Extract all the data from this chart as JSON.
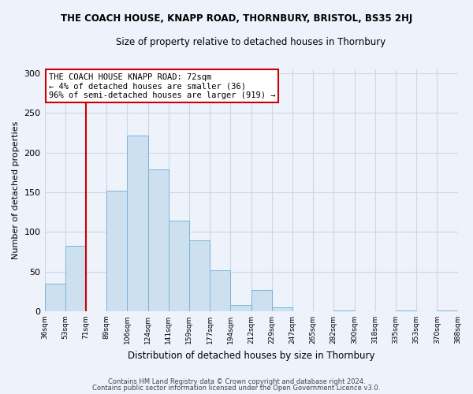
{
  "title": "THE COACH HOUSE, KNAPP ROAD, THORNBURY, BRISTOL, BS35 2HJ",
  "subtitle": "Size of property relative to detached houses in Thornbury",
  "xlabel": "Distribution of detached houses by size in Thornbury",
  "ylabel": "Number of detached properties",
  "bar_values": [
    35,
    82,
    0,
    152,
    222,
    179,
    114,
    89,
    52,
    8,
    27,
    5,
    0,
    0,
    1,
    0,
    0,
    1,
    0,
    1
  ],
  "bar_labels": [
    "36sqm",
    "53sqm",
    "71sqm",
    "89sqm",
    "106sqm",
    "124sqm",
    "141sqm",
    "159sqm",
    "177sqm",
    "194sqm",
    "212sqm",
    "229sqm",
    "247sqm",
    "265sqm",
    "282sqm",
    "300sqm",
    "318sqm",
    "335sqm",
    "353sqm",
    "370sqm",
    "388sqm"
  ],
  "bar_color": "#cce0f0",
  "bar_edge_color": "#7ab5d8",
  "property_line_color": "#cc0000",
  "annotation_text": "THE COACH HOUSE KNAPP ROAD: 72sqm\n← 4% of detached houses are smaller (36)\n96% of semi-detached houses are larger (919) →",
  "annotation_box_color": "white",
  "annotation_box_edge": "#cc0000",
  "ylim": [
    0,
    305
  ],
  "yticks": [
    0,
    50,
    100,
    150,
    200,
    250,
    300
  ],
  "grid_color": "#c8d8e8",
  "footer_line1": "Contains HM Land Registry data © Crown copyright and database right 2024.",
  "footer_line2": "Contains public sector information licensed under the Open Government Licence v3.0.",
  "background_color": "#eef2fa"
}
